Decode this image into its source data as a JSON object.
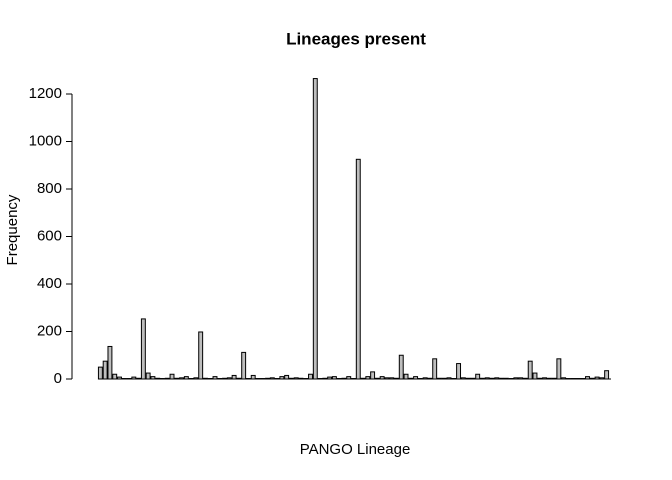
{
  "chart_data": {
    "type": "bar",
    "title": "Lineages present",
    "x_label": "PANGO Lineage",
    "y_label": "Frequency",
    "values": [
      50,
      75,
      137,
      20,
      8,
      2,
      2,
      8,
      3,
      253,
      25,
      10,
      3,
      2,
      3,
      20,
      3,
      5,
      10,
      2,
      5,
      198,
      3,
      2,
      10,
      2,
      3,
      5,
      15,
      3,
      112,
      2,
      15,
      2,
      2,
      3,
      5,
      2,
      10,
      15,
      3,
      5,
      3,
      2,
      20,
      1265,
      2,
      3,
      8,
      10,
      2,
      3,
      10,
      2,
      925,
      3,
      10,
      30,
      3,
      10,
      5,
      5,
      3,
      100,
      20,
      3,
      10,
      2,
      5,
      3,
      85,
      3,
      3,
      5,
      2,
      65,
      5,
      3,
      3,
      20,
      3,
      5,
      3,
      5,
      3,
      3,
      2,
      5,
      5,
      3,
      75,
      25,
      3,
      5,
      3,
      3,
      85,
      5,
      2,
      2,
      2,
      2,
      10,
      3,
      8,
      5,
      35
    ],
    "categories": [
      null,
      null,
      null,
      null,
      null,
      null,
      null,
      null,
      null,
      null,
      null,
      null,
      null,
      null,
      null,
      null,
      null,
      null,
      null,
      null,
      null,
      null,
      null,
      null,
      null,
      null,
      null,
      null,
      null,
      null,
      null,
      null,
      null,
      null,
      null,
      null,
      null,
      null,
      null,
      null,
      null,
      null,
      null,
      null,
      null,
      null,
      null,
      null,
      null,
      null,
      null,
      null,
      null,
      null,
      null,
      null,
      null,
      null,
      null,
      null,
      null,
      null,
      null,
      null,
      null,
      null,
      null,
      null,
      null,
      null,
      null,
      null,
      null,
      null,
      null,
      null,
      null,
      null,
      null,
      null,
      null,
      null,
      null,
      null,
      null,
      null,
      null,
      null,
      null,
      null,
      null,
      null,
      null,
      null,
      null,
      null,
      null,
      null,
      null,
      null,
      null,
      null,
      null,
      null,
      null,
      null,
      null
    ],
    "color": "#bebebe",
    "ylim": [
      0,
      1300
    ],
    "yticks": [
      0,
      200,
      400,
      600,
      800,
      1000,
      1200
    ]
  }
}
